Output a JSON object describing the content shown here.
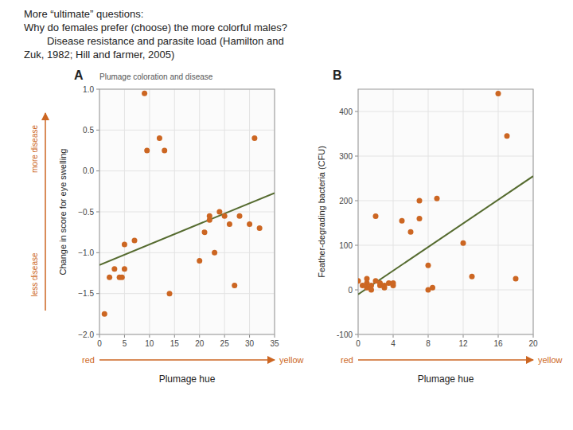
{
  "chart_data": [
    {
      "type": "scatter",
      "title": "More “ultimate” questions:\nWhy do females prefer (choose) the more colorful males?\n        Disease resistance and parasite load (Hamilton and\nZuk, 1982; Hill and farmer, 2005)",
      "subtitle": "Plumage coloration and disease",
      "x_label": "Plumage hue",
      "y_label": "Change in score for eye swelling",
      "annotations": [
        "A",
        "more disease",
        "less disease",
        "red",
        "yellow"
      ],
      "xlim": [
        0,
        35
      ],
      "ylim": [
        -2.0,
        1.0
      ],
      "xticks": [
        0,
        5,
        10,
        15,
        20,
        25,
        30,
        35
      ],
      "yticks": [
        {
          "value": -2.0,
          "label": "−2.0"
        },
        {
          "value": -1.5,
          "label": "−1.5"
        },
        {
          "value": -1.0,
          "label": "−1.0"
        },
        {
          "value": -0.5,
          "label": "−0.5"
        },
        {
          "value": 0,
          "label": "0.0"
        },
        {
          "value": 0.5,
          "label": "0.5"
        },
        {
          "value": 1.0,
          "label": "1.0"
        }
      ],
      "grid": true,
      "series": [
        {
          "type": "scatter",
          "color": "#cc6622",
          "marker": "circle",
          "x": [
            1,
            2,
            3,
            4,
            4.5,
            5,
            5,
            7,
            9,
            9.5,
            12,
            13,
            14,
            20,
            21,
            22,
            22,
            23,
            24,
            25,
            26,
            27,
            28,
            30,
            31,
            32
          ],
          "values": [
            -1.75,
            -1.3,
            -1.2,
            -1.3,
            -1.3,
            -1.2,
            -0.9,
            -0.85,
            0.95,
            0.25,
            0.4,
            0.25,
            -1.5,
            -1.1,
            -0.75,
            -0.6,
            -0.55,
            -1.0,
            -0.5,
            -0.55,
            -0.65,
            -1.4,
            -0.55,
            -0.65,
            0.4,
            -0.7
          ]
        },
        {
          "type": "line",
          "color": "#556b2f",
          "x": [
            0,
            35
          ],
          "values": [
            -1.15,
            -0.27
          ]
        }
      ]
    },
    {
      "type": "scatter",
      "x_label": "Plumage hue",
      "y_label": "Feather-degrading bacteria (CFU)",
      "annotations": [
        "B",
        "red",
        "yellow"
      ],
      "xlim": [
        0,
        20
      ],
      "ylim": [
        -100,
        450
      ],
      "xticks": [
        0,
        4,
        8,
        12,
        16,
        20
      ],
      "yticks": [
        -100,
        0,
        100,
        200,
        300,
        400
      ],
      "grid": true,
      "series": [
        {
          "type": "scatter",
          "color": "#cc6622",
          "marker": "circle",
          "x": [
            0,
            0.5,
            1,
            1,
            1,
            1.5,
            1.5,
            2,
            2,
            2.5,
            2.5,
            3,
            3,
            3.5,
            4,
            4,
            5,
            6,
            7,
            7,
            8,
            8,
            8.5,
            9,
            12,
            13,
            16,
            17,
            18
          ],
          "values": [
            20,
            10,
            5,
            15,
            25,
            10,
            0,
            165,
            20,
            10,
            15,
            5,
            10,
            15,
            10,
            15,
            155,
            130,
            200,
            160,
            55,
            0,
            5,
            205,
            105,
            30,
            440,
            345,
            25
          ]
        },
        {
          "type": "line",
          "color": "#556b2f",
          "x": [
            0,
            20
          ],
          "values": [
            -10,
            255
          ]
        }
      ]
    }
  ]
}
